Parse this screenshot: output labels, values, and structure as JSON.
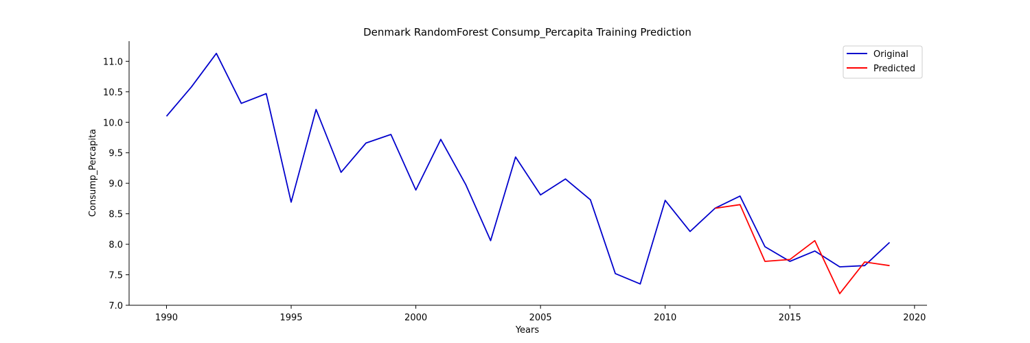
{
  "chart_data": {
    "type": "line",
    "title": "Denmark RandomForest Consump_Percapita Training Prediction",
    "xlabel": "Years",
    "ylabel": "Consump_Percapita",
    "xlim": [
      1988.5,
      2020.5
    ],
    "ylim": [
      7.0,
      11.33
    ],
    "xticks": [
      1990,
      1995,
      2000,
      2005,
      2010,
      2015,
      2020
    ],
    "yticks": [
      7.0,
      7.5,
      8.0,
      8.5,
      9.0,
      9.5,
      10.0,
      10.5,
      11.0
    ],
    "xtick_labels": [
      "1990",
      "1995",
      "2000",
      "2005",
      "2010",
      "2015",
      "2020"
    ],
    "ytick_labels": [
      "7.0",
      "7.5",
      "8.0",
      "8.5",
      "9.0",
      "9.5",
      "10.0",
      "10.5",
      "11.0"
    ],
    "grid": false,
    "legend_position": "top-right",
    "series": [
      {
        "name": "Original",
        "color": "#0000cc",
        "x": [
          1990,
          1991,
          1992,
          1993,
          1994,
          1995,
          1996,
          1997,
          1998,
          1999,
          2000,
          2001,
          2002,
          2003,
          2004,
          2005,
          2006,
          2007,
          2008,
          2009,
          2010,
          2011,
          2012,
          2013,
          2014,
          2015,
          2016,
          2017,
          2018,
          2019
        ],
        "y": [
          10.1,
          10.58,
          11.13,
          10.31,
          10.47,
          8.69,
          10.21,
          9.18,
          9.66,
          9.8,
          8.89,
          9.72,
          8.98,
          8.06,
          9.43,
          8.81,
          9.07,
          8.73,
          7.52,
          7.35,
          8.72,
          8.21,
          8.59,
          8.79,
          7.96,
          7.72,
          7.89,
          7.63,
          7.65,
          8.03
        ]
      },
      {
        "name": "Predicted",
        "color": "#ff0000",
        "x": [
          2012,
          2013,
          2014,
          2015,
          2016,
          2017,
          2018,
          2019
        ],
        "y": [
          8.59,
          8.65,
          7.72,
          7.75,
          8.06,
          7.19,
          7.71,
          7.65
        ]
      }
    ]
  }
}
